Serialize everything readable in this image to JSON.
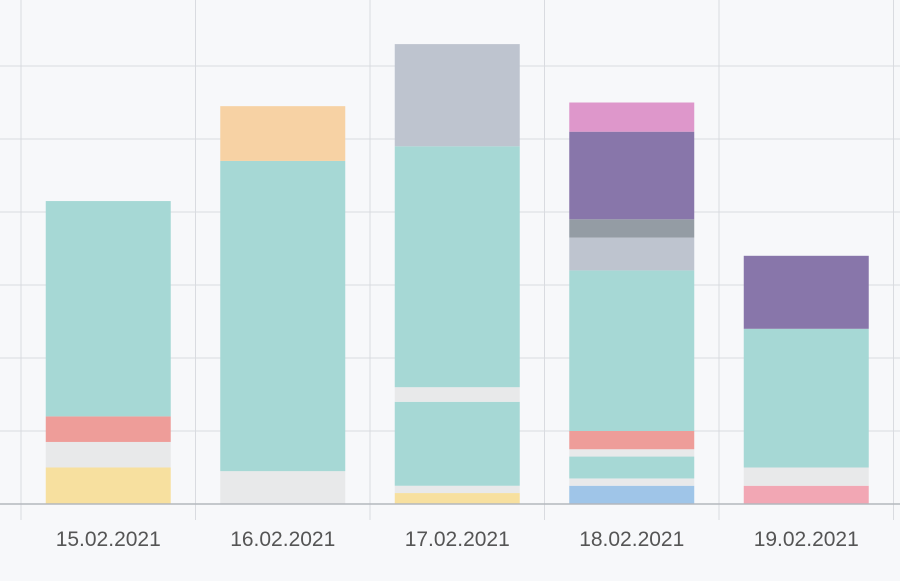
{
  "chart_data": {
    "type": "bar",
    "stacked": true,
    "title": "",
    "xlabel": "",
    "ylabel": "",
    "ylim": [
      0,
      8
    ],
    "grid": true,
    "categories": [
      "15.02.2021",
      "16.02.2021",
      "17.02.2021",
      "18.02.2021",
      "19.02.2021"
    ],
    "series": [
      {
        "color": "#9fc5e8",
        "values": [
          0,
          0,
          0,
          0.25,
          0
        ]
      },
      {
        "color": "#f2a7b4",
        "values": [
          0,
          0,
          0,
          0,
          0.25
        ]
      },
      {
        "color": "#f7e09f",
        "values": [
          0.5,
          0,
          0.15,
          0,
          0
        ]
      },
      {
        "color": "#e8e9ea",
        "values": [
          0.35,
          0.45,
          0.1,
          0.1,
          0.25
        ]
      },
      {
        "color": "#a6d8d5",
        "values": [
          0,
          0,
          1.15,
          0.3,
          0
        ]
      },
      {
        "color": "#e8e9ea",
        "values": [
          0,
          0,
          0.2,
          0.1,
          0
        ]
      },
      {
        "color": "#ee9d99",
        "values": [
          0.35,
          0,
          0,
          0.25,
          0
        ]
      },
      {
        "color": "#a6d8d5",
        "values": [
          2.95,
          4.25,
          3.3,
          2.2,
          1.9
        ]
      },
      {
        "color": "#bec4cf",
        "values": [
          0,
          0,
          1.4,
          0.45,
          0
        ]
      },
      {
        "color": "#949ca4",
        "values": [
          0,
          0,
          0,
          0.25,
          0
        ]
      },
      {
        "color": "#8876aa",
        "values": [
          0,
          0,
          0,
          1.2,
          1.0
        ]
      },
      {
        "color": "#f7d2a4",
        "values": [
          0,
          0.75,
          0,
          0,
          0
        ]
      },
      {
        "color": "#de97cb",
        "values": [
          0,
          0,
          0,
          0.4,
          0
        ]
      }
    ]
  }
}
